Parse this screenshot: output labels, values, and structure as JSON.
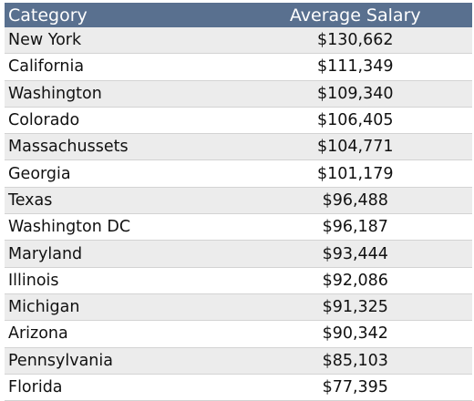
{
  "chart_data": {
    "type": "table",
    "columns": [
      "Category",
      "Average Salary"
    ],
    "rows": [
      {
        "category": "New York",
        "value": "$130,662"
      },
      {
        "category": "California",
        "value": "$111,349"
      },
      {
        "category": "Washington",
        "value": "$109,340"
      },
      {
        "category": "Colorado",
        "value": "$106,405"
      },
      {
        "category": "Massachussets",
        "value": "$104,771"
      },
      {
        "category": "Georgia",
        "value": "$101,179"
      },
      {
        "category": "Texas",
        "value": "$96,488"
      },
      {
        "category": "Washington DC",
        "value": "$96,187"
      },
      {
        "category": "Maryland",
        "value": "$93,444"
      },
      {
        "category": "Illinois",
        "value": "$92,086"
      },
      {
        "category": "Michigan",
        "value": "$91,325"
      },
      {
        "category": "Arizona",
        "value": "$90,342"
      },
      {
        "category": "Pennsylvania",
        "value": "$85,103"
      },
      {
        "category": "Florida",
        "value": "$77,395"
      }
    ],
    "colors": {
      "header_bg": "#59708f",
      "header_text": "#ffffff",
      "stripe": "#ececec"
    }
  }
}
